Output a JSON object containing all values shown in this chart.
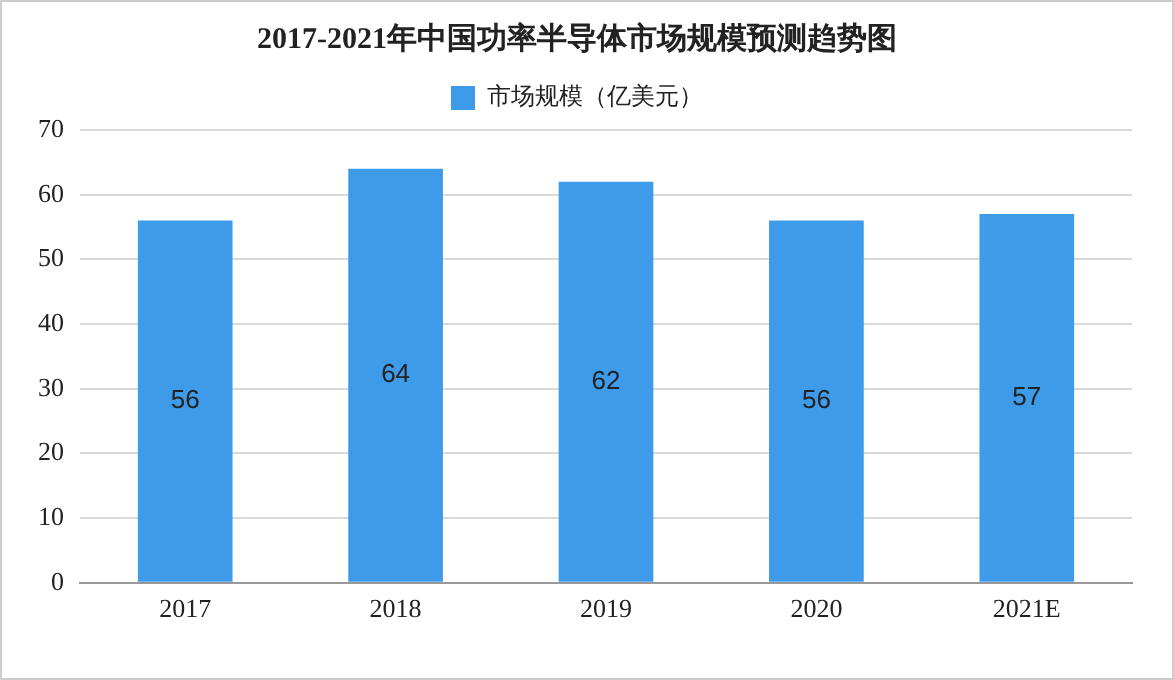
{
  "chart_data": {
    "type": "bar",
    "title": "2017-2021年中国功率半导体市场规模预测趋势图",
    "categories": [
      "2017",
      "2018",
      "2019",
      "2020",
      "2021E"
    ],
    "series": [
      {
        "name": "市场规模（亿美元）",
        "color": "#3d9be9",
        "values": [
          56,
          64,
          62,
          56,
          57
        ]
      }
    ],
    "ylim": [
      0,
      70
    ],
    "yticks": [
      0,
      10,
      20,
      30,
      40,
      50,
      60,
      70
    ],
    "grid": "y",
    "legend": "top",
    "data_labels": true
  }
}
